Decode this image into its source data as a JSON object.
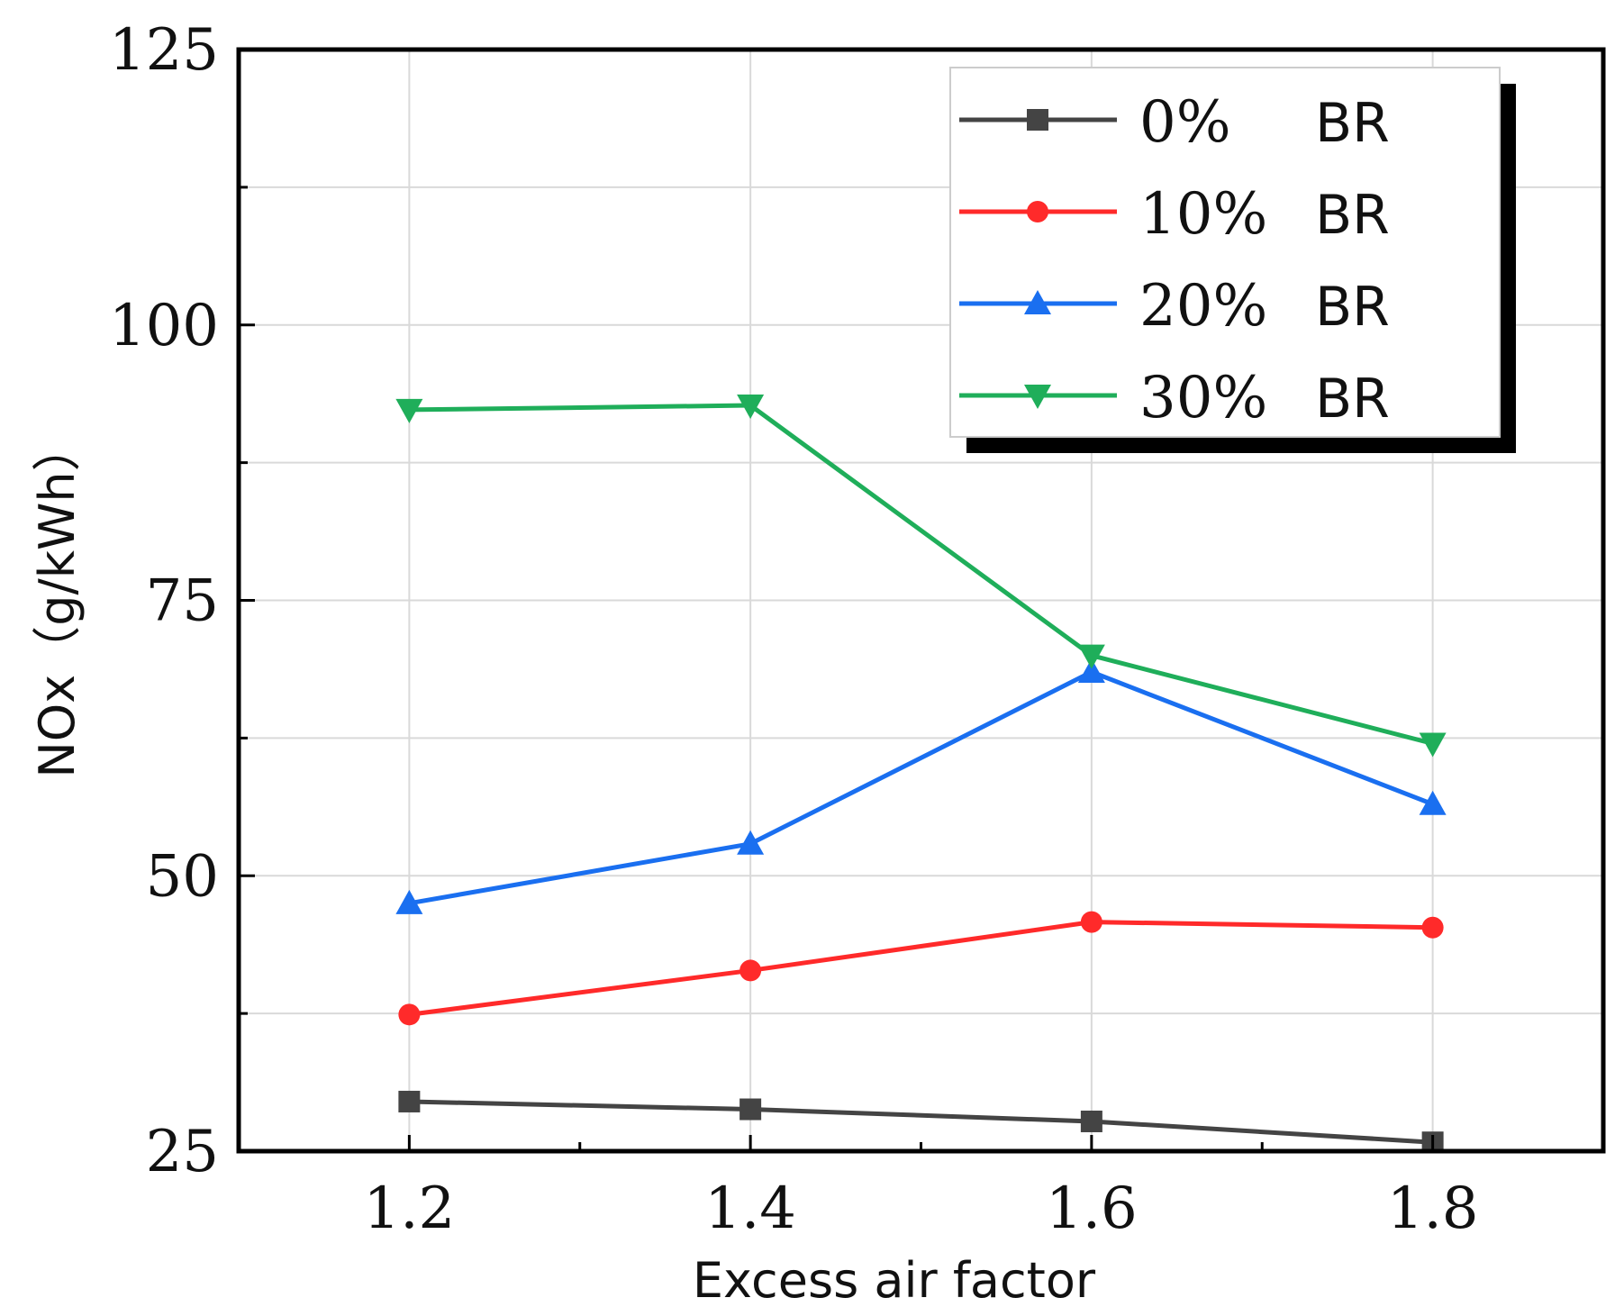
{
  "chart_data": {
    "type": "line",
    "title": "",
    "xlabel": "Excess air factor",
    "ylabel": "NOx（g/kWh）",
    "x": [
      1.2,
      1.4,
      1.6,
      1.8
    ],
    "x_tick_labels": [
      "1.2",
      "1.4",
      "1.6",
      "1.8"
    ],
    "xlim": [
      1.1,
      1.9
    ],
    "ylim": [
      25,
      125
    ],
    "y_ticks": [
      25,
      50,
      75,
      100,
      125
    ],
    "y_tick_labels": [
      "25",
      "50",
      "75",
      "100",
      "125"
    ],
    "grid": true,
    "legend_position": "top-right",
    "series": [
      {
        "name": "0%",
        "suffix": "BR",
        "color": "#444444",
        "marker": "square",
        "values": [
          29.5,
          28.8,
          27.7,
          25.8
        ]
      },
      {
        "name": "10%",
        "suffix": "BR",
        "color": "#ff2a2a",
        "marker": "circle",
        "values": [
          37.4,
          41.4,
          45.8,
          45.3
        ]
      },
      {
        "name": "20%",
        "suffix": "BR",
        "color": "#1a6ff0",
        "marker": "triangle-up",
        "values": [
          47.5,
          52.9,
          68.5,
          56.5
        ]
      },
      {
        "name": "30%",
        "suffix": "BR",
        "color": "#1fae5a",
        "marker": "triangle-down",
        "values": [
          92.3,
          92.7,
          70.0,
          62.0
        ]
      }
    ]
  }
}
